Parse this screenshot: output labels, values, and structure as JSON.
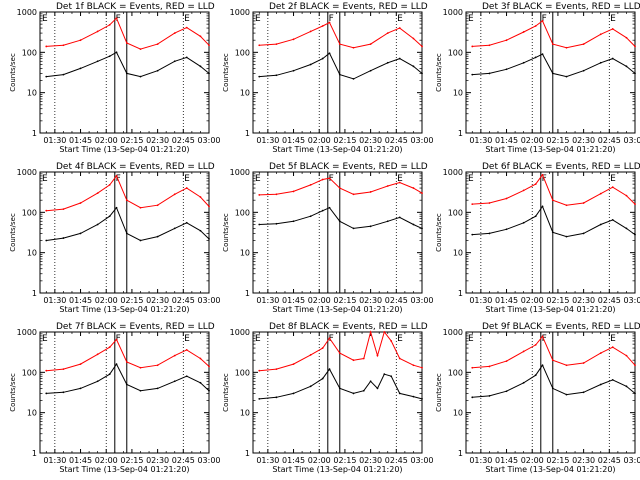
{
  "figure": {
    "xlabel": "Start Time (13-Sep-04 01:21:20)",
    "ylabel": "Counts/sec",
    "x_tick_labels": [
      "01:30",
      "01:45",
      "02:00",
      "02:15",
      "02:30",
      "02:45",
      "03:00"
    ],
    "y_tick_labels": [
      "1",
      "10",
      "100",
      "1000"
    ],
    "marker_labels": [
      "E",
      "F",
      "E"
    ],
    "series_colors": {
      "events": "#000000",
      "lld": "#ff0000"
    }
  },
  "chart_data": [
    {
      "type": "line",
      "title": "Det 1f BLACK = Events, RED = LLD",
      "xlabel": "Start Time (13-Sep-04 01:21:20)",
      "ylabel": "Counts/sec",
      "xlim": [
        "01:21:20",
        "03:00"
      ],
      "ylim": [
        1,
        1000
      ],
      "yscale": "log",
      "x": [
        "01:25",
        "01:35",
        "01:45",
        "01:55",
        "02:02",
        "02:06",
        "02:12",
        "02:20",
        "02:30",
        "02:40",
        "02:47",
        "02:55",
        "03:00"
      ],
      "series": [
        {
          "values": [
            140,
            150,
            200,
            330,
            480,
            700,
            170,
            120,
            160,
            300,
            410,
            250,
            150
          ]
        },
        {
          "values": [
            25,
            28,
            40,
            60,
            80,
            100,
            30,
            25,
            35,
            60,
            75,
            45,
            30
          ]
        }
      ]
    },
    {
      "type": "line",
      "title": "Det 2f BLACK = Events, RED = LLD",
      "xlabel": "Start Time (13-Sep-04 01:21:20)",
      "ylabel": "Counts/sec",
      "xlim": [
        "01:21:20",
        "03:00"
      ],
      "ylim": [
        1,
        1000
      ],
      "yscale": "log",
      "x": [
        "01:25",
        "01:35",
        "01:45",
        "01:55",
        "02:02",
        "02:06",
        "02:12",
        "02:20",
        "02:30",
        "02:40",
        "02:47",
        "02:55",
        "03:00"
      ],
      "series": [
        {
          "values": [
            150,
            160,
            210,
            330,
            450,
            550,
            160,
            130,
            160,
            300,
            400,
            220,
            140
          ]
        },
        {
          "values": [
            25,
            27,
            35,
            50,
            70,
            95,
            28,
            22,
            35,
            55,
            70,
            45,
            30
          ]
        }
      ]
    },
    {
      "type": "line",
      "title": "Det 3f BLACK = Events, RED = LLD",
      "xlabel": "Start Time (13-Sep-04 01:21:20)",
      "ylabel": "Counts/sec",
      "xlim": [
        "01:21:20",
        "03:00"
      ],
      "ylim": [
        1,
        1000
      ],
      "yscale": "log",
      "x": [
        "01:25",
        "01:35",
        "01:45",
        "01:55",
        "02:02",
        "02:06",
        "02:12",
        "02:20",
        "02:30",
        "02:40",
        "02:47",
        "02:55",
        "03:00"
      ],
      "series": [
        {
          "values": [
            140,
            150,
            200,
            320,
            450,
            600,
            160,
            130,
            160,
            280,
            380,
            230,
            140
          ]
        },
        {
          "values": [
            28,
            30,
            38,
            55,
            75,
            90,
            30,
            25,
            35,
            55,
            70,
            45,
            30
          ]
        }
      ]
    },
    {
      "type": "line",
      "title": "Det 4f BLACK = Events, RED = LLD",
      "xlabel": "Start Time (13-Sep-04 01:21:20)",
      "ylabel": "Counts/sec",
      "xlim": [
        "01:21:20",
        "03:00"
      ],
      "ylim": [
        1,
        1000
      ],
      "yscale": "log",
      "x": [
        "01:25",
        "01:35",
        "01:45",
        "01:55",
        "02:02",
        "02:06",
        "02:12",
        "02:20",
        "02:30",
        "02:40",
        "02:47",
        "02:55",
        "03:00"
      ],
      "series": [
        {
          "values": [
            110,
            120,
            170,
            300,
            480,
            800,
            200,
            130,
            150,
            280,
            400,
            240,
            140
          ]
        },
        {
          "values": [
            20,
            23,
            30,
            50,
            80,
            130,
            30,
            20,
            25,
            40,
            55,
            35,
            22
          ]
        }
      ]
    },
    {
      "type": "line",
      "title": "Det 5f BLACK = Events, RED = LLD",
      "xlabel": "Start Time (13-Sep-04 01:21:20)",
      "ylabel": "Counts/sec",
      "xlim": [
        "01:21:20",
        "03:00"
      ],
      "ylim": [
        1,
        1000
      ],
      "yscale": "log",
      "x": [
        "01:25",
        "01:35",
        "01:45",
        "01:55",
        "02:02",
        "02:06",
        "02:12",
        "02:20",
        "02:30",
        "02:40",
        "02:47",
        "02:55",
        "03:00"
      ],
      "series": [
        {
          "values": [
            270,
            280,
            330,
            480,
            650,
            700,
            400,
            280,
            320,
            450,
            550,
            400,
            300
          ]
        },
        {
          "values": [
            50,
            52,
            60,
            80,
            110,
            130,
            60,
            40,
            45,
            60,
            75,
            50,
            40
          ]
        }
      ]
    },
    {
      "type": "line",
      "title": "Det 6f BLACK = Events, RED = LLD",
      "xlabel": "Start Time (13-Sep-04 01:21:20)",
      "ylabel": "Counts/sec",
      "xlim": [
        "01:21:20",
        "03:00"
      ],
      "ylim": [
        1,
        1000
      ],
      "yscale": "log",
      "x": [
        "01:25",
        "01:35",
        "01:45",
        "01:55",
        "02:02",
        "02:06",
        "02:12",
        "02:20",
        "02:30",
        "02:40",
        "02:47",
        "02:55",
        "03:00"
      ],
      "series": [
        {
          "values": [
            160,
            170,
            220,
            350,
            500,
            850,
            200,
            150,
            170,
            290,
            420,
            260,
            160
          ]
        },
        {
          "values": [
            28,
            30,
            38,
            55,
            80,
            140,
            32,
            25,
            30,
            50,
            65,
            40,
            28
          ]
        }
      ]
    },
    {
      "type": "line",
      "title": "Det 7f BLACK = Events, RED = LLD",
      "xlabel": "Start Time (13-Sep-04 01:21:20)",
      "ylabel": "Counts/sec",
      "xlim": [
        "01:21:20",
        "03:00"
      ],
      "ylim": [
        1,
        1000
      ],
      "yscale": "log",
      "x": [
        "01:25",
        "01:35",
        "01:45",
        "01:55",
        "02:02",
        "02:06",
        "02:12",
        "02:20",
        "02:30",
        "02:40",
        "02:47",
        "02:55",
        "03:00"
      ],
      "series": [
        {
          "values": [
            110,
            120,
            160,
            280,
            420,
            650,
            180,
            130,
            150,
            260,
            360,
            220,
            140
          ]
        },
        {
          "values": [
            30,
            32,
            40,
            60,
            90,
            160,
            50,
            35,
            40,
            60,
            80,
            55,
            35
          ]
        }
      ]
    },
    {
      "type": "line",
      "title": "Det 8f BLACK = Events, RED = LLD",
      "xlabel": "Start Time (13-Sep-04 01:21:20)",
      "ylabel": "Counts/sec",
      "xlim": [
        "01:21:20",
        "03:00"
      ],
      "ylim": [
        1,
        1000
      ],
      "yscale": "log",
      "x": [
        "01:25",
        "01:35",
        "01:45",
        "01:55",
        "02:02",
        "02:06",
        "02:12",
        "02:20",
        "02:26",
        "02:30",
        "02:34",
        "02:38",
        "02:42",
        "02:47",
        "02:55",
        "03:00"
      ],
      "series": [
        {
          "values": [
            110,
            120,
            160,
            270,
            400,
            700,
            300,
            200,
            220,
            1000,
            260,
            1000,
            600,
            220,
            150,
            130
          ]
        },
        {
          "values": [
            22,
            24,
            30,
            45,
            70,
            120,
            40,
            30,
            35,
            60,
            40,
            90,
            80,
            30,
            25,
            22
          ]
        }
      ]
    },
    {
      "type": "line",
      "title": "Det 9f BLACK = Events, RED = LLD",
      "xlabel": "Start Time (13-Sep-04 01:21:20)",
      "ylabel": "Counts/sec",
      "xlim": [
        "01:21:20",
        "03:00"
      ],
      "ylim": [
        1,
        1000
      ],
      "yscale": "log",
      "x": [
        "01:25",
        "01:35",
        "01:45",
        "01:55",
        "02:02",
        "02:06",
        "02:12",
        "02:20",
        "02:30",
        "02:40",
        "02:47",
        "02:55",
        "03:00"
      ],
      "series": [
        {
          "values": [
            130,
            140,
            190,
            330,
            480,
            780,
            200,
            150,
            170,
            300,
            420,
            260,
            150
          ]
        },
        {
          "values": [
            24,
            26,
            34,
            55,
            85,
            150,
            40,
            28,
            32,
            50,
            65,
            45,
            30
          ]
        }
      ]
    }
  ]
}
